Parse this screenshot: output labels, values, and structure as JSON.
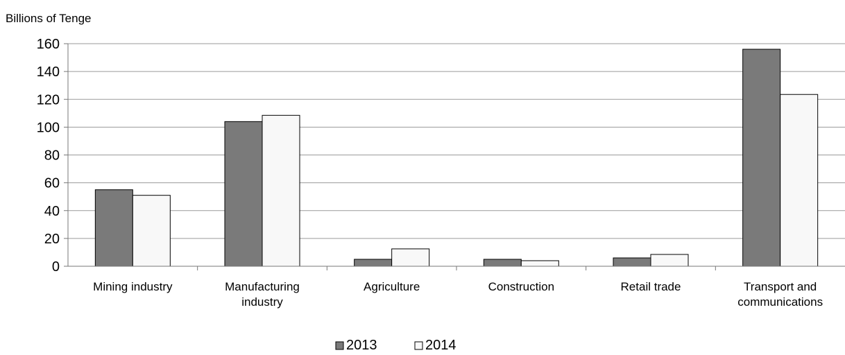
{
  "chart_data": {
    "type": "bar",
    "title": "",
    "ylabel": "Billions of Tenge",
    "xlabel": "",
    "ylim": [
      0,
      160
    ],
    "yticks": [
      0,
      20,
      40,
      60,
      80,
      100,
      120,
      140,
      160
    ],
    "grid": true,
    "legend_position": "bottom",
    "categories": [
      [
        "Mining industry"
      ],
      [
        "Manufacturing",
        "industry"
      ],
      [
        "Agriculture"
      ],
      [
        "Construction"
      ],
      [
        "Retail trade"
      ],
      [
        "Transport and",
        "communications"
      ]
    ],
    "series": [
      {
        "name": "2013",
        "color": "#7a7a7a",
        "values": [
          55,
          104,
          5,
          5,
          6,
          156
        ]
      },
      {
        "name": "2014",
        "color": "#f8f8f8",
        "values": [
          51,
          108.5,
          12.5,
          4,
          8.5,
          123.5
        ]
      }
    ]
  }
}
